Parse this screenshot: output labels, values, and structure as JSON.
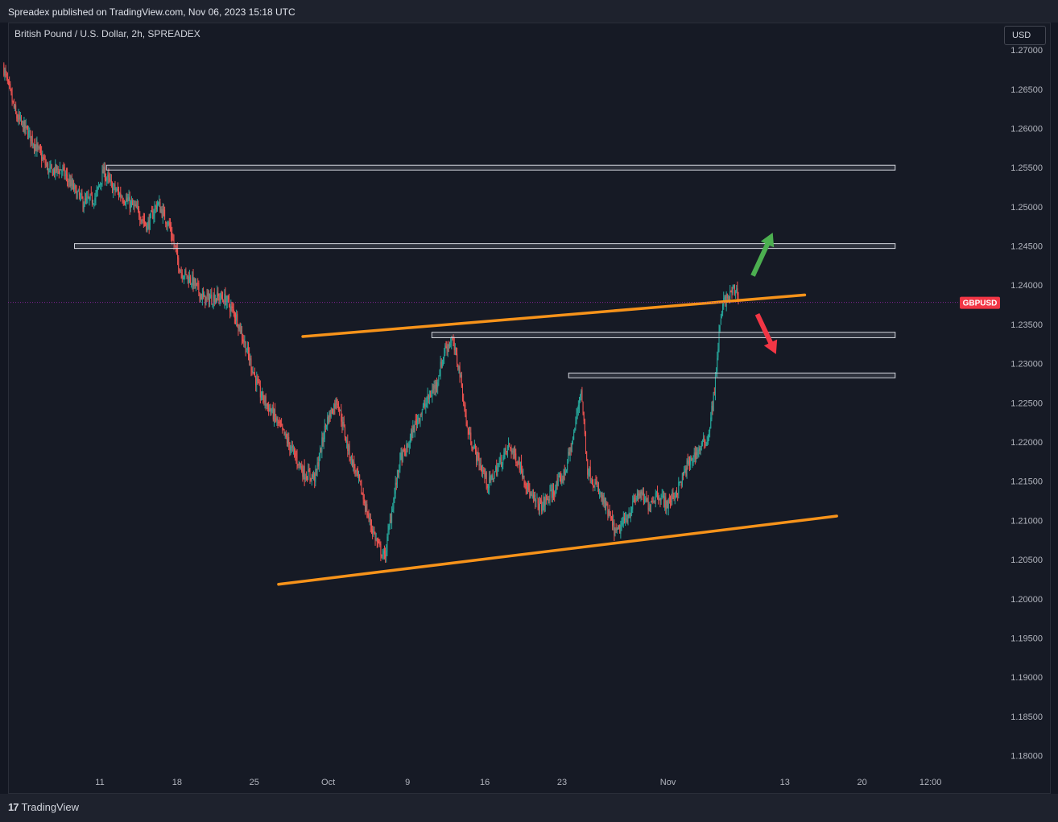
{
  "header": {
    "text": "Spreadex published on TradingView.com, Nov 06, 2023 15:18 UTC"
  },
  "symbol": {
    "title": "British Pound / U.S. Dollar, 2h, SPREADEX"
  },
  "currency_button": {
    "label": "USD"
  },
  "footer": {
    "logo_mark": "17",
    "logo_text": "TradingView"
  },
  "colors": {
    "background": "#161a25",
    "up": "#26a69a",
    "down": "#ef5350",
    "trendline": "#f7931a",
    "zone_border": "#d1d4dc",
    "arrow_up": "#4caf50",
    "arrow_down": "#f23645",
    "price_tag": "#f23645"
  },
  "chart_data": {
    "type": "candlestick",
    "symbol": "GBPUSD",
    "interval": "2h",
    "ylim": [
      1.178,
      1.2735
    ],
    "y_ticks": [
      "1.27000",
      "1.26500",
      "1.26000",
      "1.25500",
      "1.25000",
      "1.24500",
      "1.24000",
      "1.23500",
      "1.23000",
      "1.22500",
      "1.22000",
      "1.21500",
      "1.21000",
      "1.20500",
      "1.20000",
      "1.19500",
      "1.19000",
      "1.18500",
      "1.18000"
    ],
    "x_ticks": [
      {
        "label": "11",
        "day": 11
      },
      {
        "label": "18",
        "day": 18
      },
      {
        "label": "25",
        "day": 25
      },
      {
        "label": "Oct",
        "day": 31.7
      },
      {
        "label": "9",
        "day": 38.9
      },
      {
        "label": "16",
        "day": 45.9
      },
      {
        "label": "23",
        "day": 52.9
      },
      {
        "label": "Nov",
        "day": 62.5
      },
      {
        "label": "13",
        "day": 73.1
      },
      {
        "label": "20",
        "day": 80.1
      },
      {
        "label": "12:00",
        "day": 86.3
      }
    ],
    "last_price": {
      "label": "GBPUSD",
      "value": 1.2378
    },
    "price_path": [
      [
        2.3,
        1.268
      ],
      [
        3.5,
        1.2615
      ],
      [
        4.8,
        1.259
      ],
      [
        6.5,
        1.2545
      ],
      [
        7.6,
        1.2548
      ],
      [
        8.6,
        1.2525
      ],
      [
        9.6,
        1.2505
      ],
      [
        10.7,
        1.2512
      ],
      [
        11.4,
        1.2545
      ],
      [
        12.2,
        1.2525
      ],
      [
        13.2,
        1.2512
      ],
      [
        14.5,
        1.2495
      ],
      [
        15.4,
        1.2475
      ],
      [
        16.3,
        1.2505
      ],
      [
        17.4,
        1.2475
      ],
      [
        18.4,
        1.2418
      ],
      [
        19.5,
        1.2405
      ],
      [
        20.5,
        1.2382
      ],
      [
        21.6,
        1.2385
      ],
      [
        22.5,
        1.2382
      ],
      [
        23.5,
        1.2358
      ],
      [
        24.6,
        1.2308
      ],
      [
        25.6,
        1.2262
      ],
      [
        26.8,
        1.2235
      ],
      [
        28.3,
        1.2195
      ],
      [
        29.6,
        1.216
      ],
      [
        30.6,
        1.2155
      ],
      [
        31.6,
        1.2225
      ],
      [
        32.6,
        1.2255
      ],
      [
        33.6,
        1.219
      ],
      [
        34.6,
        1.2148
      ],
      [
        35.4,
        1.2105
      ],
      [
        36.3,
        1.2068
      ],
      [
        36.9,
        1.2052
      ],
      [
        37.6,
        1.2118
      ],
      [
        38.3,
        1.2178
      ],
      [
        38.9,
        1.219
      ],
      [
        39.7,
        1.2225
      ],
      [
        40.6,
        1.2248
      ],
      [
        41.6,
        1.2275
      ],
      [
        42.4,
        1.232
      ],
      [
        43.0,
        1.233
      ],
      [
        43.7,
        1.229
      ],
      [
        44.4,
        1.2215
      ],
      [
        45.3,
        1.218
      ],
      [
        46.3,
        1.2145
      ],
      [
        47.3,
        1.2172
      ],
      [
        48.2,
        1.2195
      ],
      [
        49.2,
        1.217
      ],
      [
        50.2,
        1.2128
      ],
      [
        51.1,
        1.2118
      ],
      [
        52.1,
        1.2135
      ],
      [
        53.2,
        1.216
      ],
      [
        54.0,
        1.2205
      ],
      [
        54.7,
        1.227
      ],
      [
        55.3,
        1.2165
      ],
      [
        55.9,
        1.2148
      ],
      [
        56.9,
        1.2118
      ],
      [
        57.9,
        1.2082
      ],
      [
        58.9,
        1.2105
      ],
      [
        59.9,
        1.2135
      ],
      [
        60.8,
        1.212
      ],
      [
        61.6,
        1.2135
      ],
      [
        62.5,
        1.212
      ],
      [
        63.5,
        1.214
      ],
      [
        64.3,
        1.2168
      ],
      [
        65.1,
        1.2185
      ],
      [
        66.2,
        1.2205
      ],
      [
        66.8,
        1.2265
      ],
      [
        67.2,
        1.2335
      ],
      [
        67.6,
        1.2378
      ],
      [
        68.1,
        1.2385
      ],
      [
        68.6,
        1.2395
      ],
      [
        68.9,
        1.239
      ]
    ],
    "zones": [
      {
        "from_day": 11.6,
        "to_day": 83.1,
        "low": 1.2547,
        "high": 1.2553
      },
      {
        "from_day": 8.7,
        "to_day": 83.1,
        "low": 1.2447,
        "high": 1.2453
      },
      {
        "from_day": 41.1,
        "to_day": 83.1,
        "low": 1.2333,
        "high": 1.234
      },
      {
        "from_day": 53.5,
        "to_day": 83.1,
        "low": 1.2282,
        "high": 1.2288
      }
    ],
    "trendlines": [
      {
        "from": [
          29.4,
          1.23345
        ],
        "to": [
          74.9,
          1.23875
        ]
      },
      {
        "from": [
          27.2,
          1.20185
        ],
        "to": [
          77.8,
          1.21055
        ]
      }
    ],
    "arrows": [
      {
        "direction": "up",
        "from": [
          70.2,
          1.2412
        ],
        "to": [
          72.0,
          1.2467
        ]
      },
      {
        "direction": "down",
        "from": [
          70.6,
          1.2363
        ],
        "to": [
          72.3,
          1.2312
        ]
      }
    ]
  }
}
